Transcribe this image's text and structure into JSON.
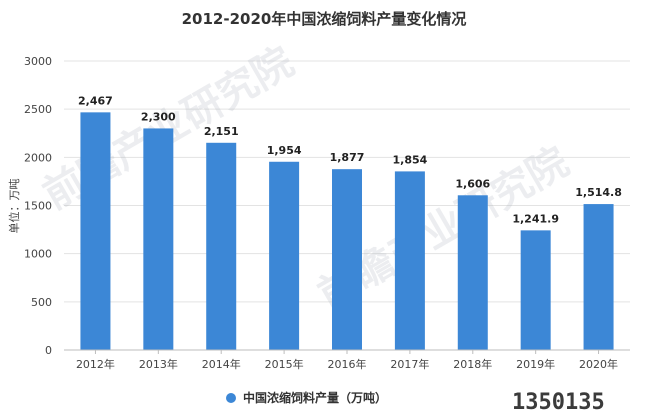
{
  "chart_data": {
    "type": "bar",
    "title": "2012-2020年中国浓缩饲料产量变化情况",
    "ylabel": "单位：万吨",
    "categories": [
      "2012年",
      "2013年",
      "2014年",
      "2015年",
      "2016年",
      "2017年",
      "2018年",
      "2019年",
      "2020年"
    ],
    "series": [
      {
        "name": "中国浓缩饲料产量（万吨）",
        "values": [
          2467,
          2300,
          2151,
          1954,
          1877,
          1854,
          1606,
          1241.9,
          1514.8
        ],
        "labels": [
          "2,467",
          "2,300",
          "2,151",
          "1,954",
          "1,877",
          "1,854",
          "1,606",
          "1,241.9",
          "1,514.8"
        ]
      }
    ],
    "ylim": [
      0,
      3000
    ],
    "yticks": [
      0,
      500,
      1000,
      1500,
      2000,
      2500,
      3000
    ],
    "grid": true,
    "legend": "bottom",
    "colors": {
      "bar": "#3c87d6",
      "grid": "#e3e3e3"
    }
  },
  "watermark": "前瞻产业研究院",
  "footer_mark": "1350135"
}
